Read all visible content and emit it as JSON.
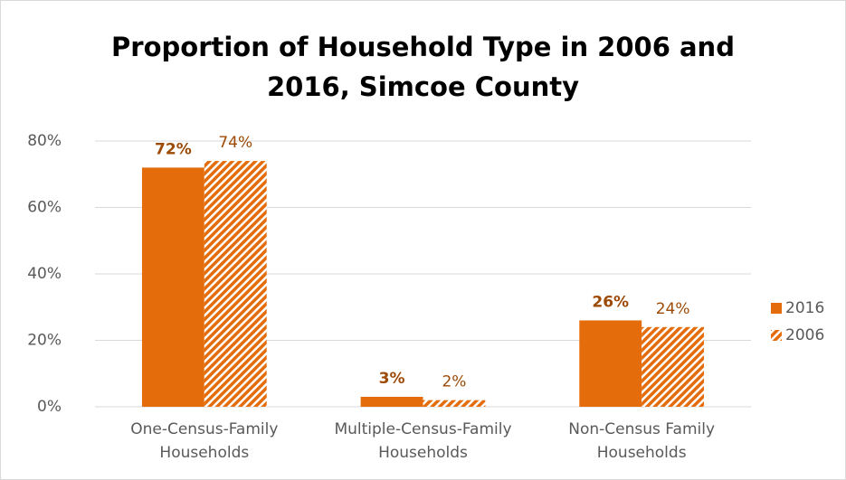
{
  "chart_data": {
    "type": "bar",
    "title": "Proportion of Household Type in 2006 and 2016, Simcoe County",
    "categories": [
      "One-Census-Family Households",
      "Multiple-Census-Family Households",
      "Non-Census Family Households"
    ],
    "series": [
      {
        "name": "2016",
        "color": "#e46c0a",
        "values": [
          72,
          3,
          26
        ],
        "value_labels": [
          "72%",
          "3%",
          "26%"
        ]
      },
      {
        "name": "2006",
        "color": "#e46c0a",
        "hatch": true,
        "values": [
          74,
          2,
          24
        ],
        "value_labels": [
          "74%",
          "2%",
          "24%"
        ]
      }
    ],
    "ylim": [
      0,
      80
    ],
    "yticks": [
      {
        "value": 0,
        "label": "0%"
      },
      {
        "value": 20,
        "label": "20%"
      },
      {
        "value": 40,
        "label": "40%"
      },
      {
        "value": 60,
        "label": "60%"
      },
      {
        "value": 80,
        "label": "80%"
      }
    ],
    "grid": true,
    "legend": "right"
  }
}
